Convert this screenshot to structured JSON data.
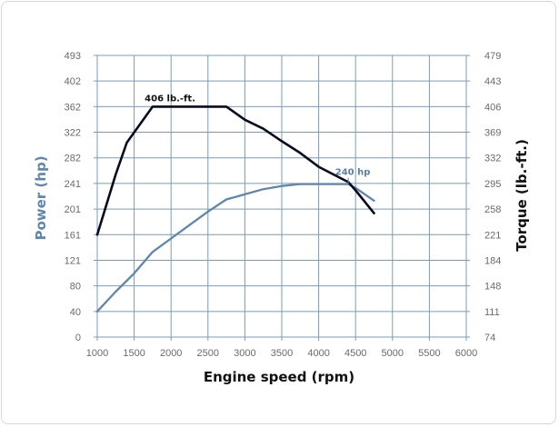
{
  "colors": {
    "grid": "#7a9bb8",
    "power": "#5f86ae",
    "torque": "#0a0a1e",
    "power_label": "#5a7fa6",
    "torque_label": "#111111"
  },
  "chart_data": {
    "type": "line",
    "x_axis": {
      "label": "Engine speed (rpm)",
      "min": 1000,
      "max": 6000,
      "ticks": [
        "1000",
        "1500",
        "2000",
        "2500",
        "3000",
        "3500",
        "4000",
        "4500",
        "5000",
        "5500",
        "6000"
      ]
    },
    "y_left": {
      "label": "Power (hp)",
      "ticks": [
        "0",
        "40",
        "80",
        "121",
        "161",
        "201",
        "241",
        "282",
        "322",
        "362",
        "402",
        "493"
      ]
    },
    "y_right": {
      "label": "Torque (lb.-ft.)",
      "ticks": [
        "74",
        "111",
        "148",
        "184",
        "221",
        "258",
        "295",
        "332",
        "369",
        "406",
        "443",
        "479"
      ]
    },
    "series": [
      {
        "name": "Power (hp)",
        "axis": "left",
        "x": [
          1000,
          1250,
          1500,
          1750,
          2000,
          2250,
          2500,
          2750,
          3000,
          3250,
          3500,
          3750,
          4000,
          4250,
          4400,
          4500,
          4750
        ],
        "y": [
          40,
          71,
          100,
          134,
          155,
          176,
          197,
          216,
          224,
          232,
          237,
          240,
          240,
          240,
          240,
          234,
          214
        ]
      },
      {
        "name": "Torque (lb.-ft.)",
        "axis": "right",
        "x": [
          1000,
          1250,
          1400,
          1750,
          2000,
          2500,
          2750,
          3000,
          3250,
          3500,
          3750,
          4000,
          4400,
          4500,
          4750
        ],
        "y": [
          221,
          308,
          354,
          406,
          406,
          406,
          406,
          387,
          374,
          356,
          339,
          319,
          297,
          285,
          252
        ]
      }
    ],
    "annotations": [
      {
        "text": "406 lb.-ft.",
        "series": "Torque (lb.-ft.)",
        "x": 1900,
        "y": 406
      },
      {
        "text": "240 hp",
        "series": "Power (hp)",
        "x": 4400,
        "y": 240
      }
    ],
    "grid": true
  }
}
